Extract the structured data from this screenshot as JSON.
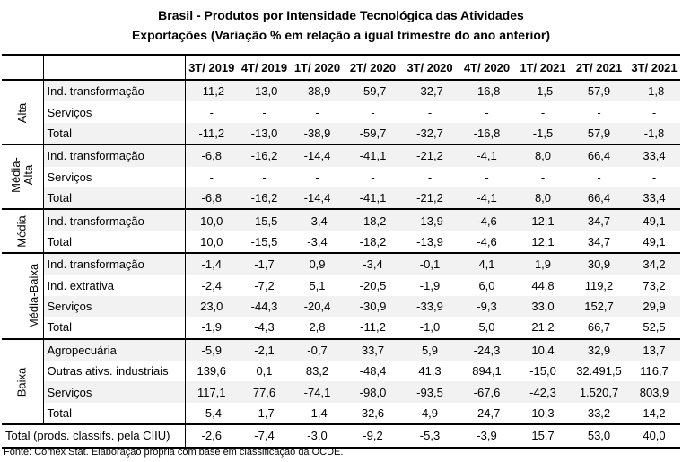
{
  "title_line1": "Brasil - Produtos por Intensidade Tecnológica das Atividades",
  "title_line2": "Exportações (Variação % em relação a igual trimestre do ano anterior)",
  "columns": [
    "3T/ 2019",
    "4T/ 2019",
    "1T/ 2020",
    "2T/ 2020",
    "3T/ 2020",
    "4T/ 2020",
    "1T/ 2021",
    "2T/ 2021",
    "3T/ 2021"
  ],
  "groups": [
    {
      "name_lines": [
        "Alta"
      ],
      "rows": [
        {
          "label": "Ind. transformação",
          "values": [
            "-11,2",
            "-13,0",
            "-38,9",
            "-59,7",
            "-32,7",
            "-16,8",
            "-1,5",
            "57,9",
            "-1,8"
          ]
        },
        {
          "label": "Serviços",
          "values": [
            "-",
            "-",
            "-",
            "-",
            "-",
            "-",
            "-",
            "-",
            "-"
          ]
        },
        {
          "label": "Total",
          "values": [
            "-11,2",
            "-13,0",
            "-38,9",
            "-59,7",
            "-32,7",
            "-16,8",
            "-1,5",
            "57,9",
            "-1,8"
          ]
        }
      ]
    },
    {
      "name_lines": [
        "Média-",
        "Alta"
      ],
      "rows": [
        {
          "label": "Ind. transformação",
          "values": [
            "-6,8",
            "-16,2",
            "-14,4",
            "-41,1",
            "-21,2",
            "-4,1",
            "8,0",
            "66,4",
            "33,4"
          ]
        },
        {
          "label": "Serviços",
          "values": [
            "-",
            "-",
            "-",
            "-",
            "-",
            "-",
            "-",
            "-",
            "-"
          ]
        },
        {
          "label": "Total",
          "values": [
            "-6,8",
            "-16,2",
            "-14,4",
            "-41,1",
            "-21,2",
            "-4,1",
            "8,0",
            "66,4",
            "33,4"
          ]
        }
      ]
    },
    {
      "name_lines": [
        "Média"
      ],
      "rows": [
        {
          "label": "Ind. transformação",
          "values": [
            "10,0",
            "-15,5",
            "-3,4",
            "-18,2",
            "-13,9",
            "-4,6",
            "12,1",
            "34,7",
            "49,1"
          ]
        },
        {
          "label": "Total",
          "values": [
            "10,0",
            "-15,5",
            "-3,4",
            "-18,2",
            "-13,9",
            "-4,6",
            "12,1",
            "34,7",
            "49,1"
          ]
        }
      ]
    },
    {
      "name_lines": [
        "Média-Baixa"
      ],
      "rows": [
        {
          "label": "Ind. transformação",
          "values": [
            "-1,4",
            "-1,7",
            "0,9",
            "-3,4",
            "-0,1",
            "4,1",
            "1,9",
            "30,9",
            "34,2"
          ]
        },
        {
          "label": "Ind. extrativa",
          "values": [
            "-2,4",
            "-7,2",
            "5,1",
            "-20,5",
            "-1,9",
            "6,0",
            "44,8",
            "119,2",
            "73,2"
          ]
        },
        {
          "label": "Serviços",
          "values": [
            "23,0",
            "-44,3",
            "-20,4",
            "-30,9",
            "-33,9",
            "-9,3",
            "33,0",
            "152,7",
            "29,9"
          ]
        },
        {
          "label": "Total",
          "values": [
            "-1,9",
            "-4,3",
            "2,8",
            "-11,2",
            "-1,0",
            "5,0",
            "21,2",
            "66,7",
            "52,5"
          ]
        }
      ]
    },
    {
      "name_lines": [
        "Baixa"
      ],
      "rows": [
        {
          "label": "Agropecuária",
          "values": [
            "-5,9",
            "-2,1",
            "-0,7",
            "33,7",
            "5,9",
            "-24,3",
            "10,4",
            "32,9",
            "13,7"
          ]
        },
        {
          "label": "Outras ativs. industriais",
          "values": [
            "139,6",
            "0,1",
            "83,2",
            "-48,4",
            "41,3",
            "894,1",
            "-15,0",
            "32.491,5",
            "116,7"
          ]
        },
        {
          "label": "Serviços",
          "values": [
            "117,1",
            "77,6",
            "-74,1",
            "-98,0",
            "-93,5",
            "-67,6",
            "-42,3",
            "1.520,7",
            "803,9"
          ]
        },
        {
          "label": "Total",
          "values": [
            "-5,4",
            "-1,7",
            "-1,4",
            "32,6",
            "4,9",
            "-24,7",
            "10,3",
            "33,2",
            "14,2"
          ]
        }
      ]
    }
  ],
  "grand_total": {
    "label": "Total (prods. classifs. pela CIIU)",
    "values": [
      "-2,6",
      "-7,4",
      "-3,0",
      "-9,2",
      "-5,3",
      "-3,9",
      "15,7",
      "53,0",
      "40,0"
    ]
  },
  "source": "Fonte: Comex Stat. Elaboração própria com base em classificação da OCDE."
}
